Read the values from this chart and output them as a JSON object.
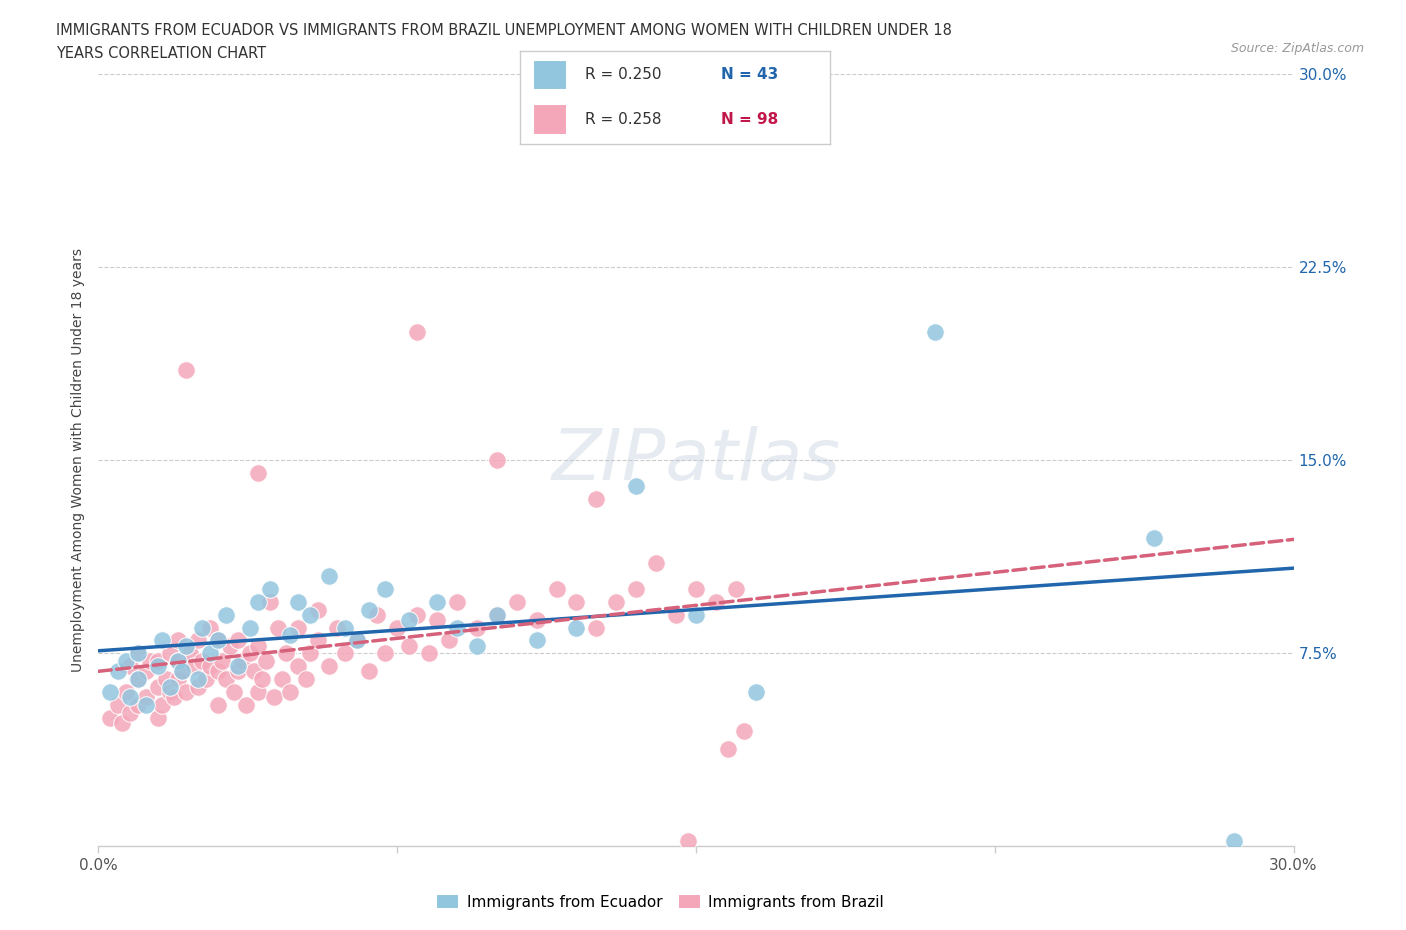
{
  "title_line1": "IMMIGRANTS FROM ECUADOR VS IMMIGRANTS FROM BRAZIL UNEMPLOYMENT AMONG WOMEN WITH CHILDREN UNDER 18",
  "title_line2": "YEARS CORRELATION CHART",
  "source": "Source: ZipAtlas.com",
  "ylabel_label": "Unemployment Among Women with Children Under 18 years",
  "watermark_text": "ZIPatlas",
  "ecuador_color": "#92c5de",
  "brazil_color": "#f4a7b9",
  "ecuador_line_color": "#2166ac",
  "brazil_line_color": "#d6617b",
  "ecuador_R": 0.25,
  "brazil_R": 0.258,
  "ecuador_N": 43,
  "brazil_N": 98,
  "xlim": [
    0.0,
    0.3
  ],
  "ylim": [
    0.0,
    0.3
  ],
  "ecu_x": [
    0.003,
    0.005,
    0.007,
    0.008,
    0.01,
    0.01,
    0.012,
    0.015,
    0.016,
    0.018,
    0.02,
    0.021,
    0.022,
    0.025,
    0.026,
    0.028,
    0.03,
    0.032,
    0.035,
    0.038,
    0.04,
    0.043,
    0.048,
    0.05,
    0.053,
    0.058,
    0.062,
    0.065,
    0.068,
    0.072,
    0.078,
    0.085,
    0.09,
    0.095,
    0.1,
    0.11,
    0.12,
    0.135,
    0.15,
    0.165,
    0.21,
    0.265,
    0.285
  ],
  "ecu_y": [
    0.06,
    0.068,
    0.072,
    0.058,
    0.065,
    0.075,
    0.055,
    0.07,
    0.08,
    0.062,
    0.072,
    0.068,
    0.078,
    0.065,
    0.085,
    0.075,
    0.08,
    0.09,
    0.07,
    0.085,
    0.095,
    0.1,
    0.082,
    0.095,
    0.09,
    0.105,
    0.085,
    0.08,
    0.092,
    0.1,
    0.088,
    0.095,
    0.085,
    0.078,
    0.09,
    0.08,
    0.085,
    0.14,
    0.09,
    0.06,
    0.2,
    0.12,
    0.002
  ],
  "bra_x": [
    0.003,
    0.005,
    0.006,
    0.007,
    0.008,
    0.008,
    0.01,
    0.01,
    0.01,
    0.012,
    0.012,
    0.013,
    0.015,
    0.015,
    0.015,
    0.016,
    0.017,
    0.018,
    0.018,
    0.019,
    0.02,
    0.02,
    0.02,
    0.021,
    0.022,
    0.023,
    0.024,
    0.025,
    0.025,
    0.026,
    0.027,
    0.028,
    0.028,
    0.03,
    0.03,
    0.03,
    0.031,
    0.032,
    0.033,
    0.034,
    0.035,
    0.035,
    0.036,
    0.037,
    0.038,
    0.039,
    0.04,
    0.04,
    0.041,
    0.042,
    0.043,
    0.044,
    0.045,
    0.046,
    0.047,
    0.048,
    0.05,
    0.05,
    0.052,
    0.053,
    0.055,
    0.055,
    0.058,
    0.06,
    0.062,
    0.065,
    0.068,
    0.07,
    0.072,
    0.075,
    0.078,
    0.08,
    0.083,
    0.085,
    0.088,
    0.09,
    0.095,
    0.1,
    0.105,
    0.11,
    0.115,
    0.12,
    0.125,
    0.13,
    0.135,
    0.14,
    0.145,
    0.15,
    0.155,
    0.16,
    0.022,
    0.04,
    0.08,
    0.1,
    0.125,
    0.148,
    0.158,
    0.162
  ],
  "bra_y": [
    0.05,
    0.055,
    0.048,
    0.06,
    0.052,
    0.07,
    0.055,
    0.065,
    0.075,
    0.058,
    0.068,
    0.072,
    0.05,
    0.062,
    0.072,
    0.055,
    0.065,
    0.06,
    0.075,
    0.058,
    0.065,
    0.072,
    0.08,
    0.068,
    0.06,
    0.075,
    0.07,
    0.062,
    0.08,
    0.072,
    0.065,
    0.07,
    0.085,
    0.055,
    0.068,
    0.08,
    0.072,
    0.065,
    0.078,
    0.06,
    0.068,
    0.08,
    0.072,
    0.055,
    0.075,
    0.068,
    0.06,
    0.078,
    0.065,
    0.072,
    0.095,
    0.058,
    0.085,
    0.065,
    0.075,
    0.06,
    0.07,
    0.085,
    0.065,
    0.075,
    0.08,
    0.092,
    0.07,
    0.085,
    0.075,
    0.08,
    0.068,
    0.09,
    0.075,
    0.085,
    0.078,
    0.09,
    0.075,
    0.088,
    0.08,
    0.095,
    0.085,
    0.09,
    0.095,
    0.088,
    0.1,
    0.095,
    0.085,
    0.095,
    0.1,
    0.11,
    0.09,
    0.1,
    0.095,
    0.1,
    0.185,
    0.145,
    0.2,
    0.15,
    0.135,
    0.002,
    0.038,
    0.045
  ]
}
